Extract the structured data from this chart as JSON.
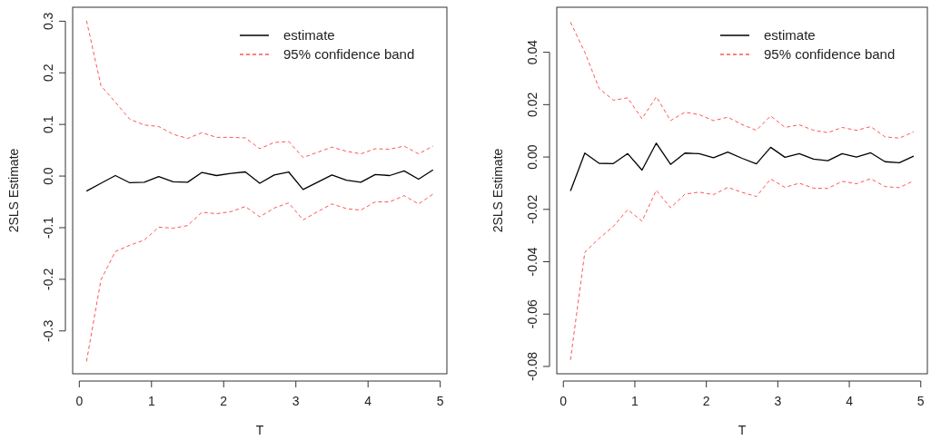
{
  "chart_data": [
    {
      "type": "line",
      "xlabel": "T",
      "ylabel": "2SLS Estimate",
      "x": [
        0.1,
        0.3,
        0.5,
        0.7,
        0.9,
        1.1,
        1.3,
        1.5,
        1.7,
        1.9,
        2.1,
        2.3,
        2.5,
        2.7,
        2.9,
        3.1,
        3.3,
        3.5,
        3.7,
        3.9,
        4.1,
        4.3,
        4.5,
        4.7,
        4.9
      ],
      "xlim": [
        -0.092,
        5.092
      ],
      "xticks": [
        0,
        1,
        2,
        3,
        4,
        5
      ],
      "ylim": [
        -0.383,
        0.327
      ],
      "yticks": [
        -0.3,
        -0.2,
        -0.1,
        {
          "value": 0,
          "label": "0.0"
        },
        0.1,
        0.2,
        0.3
      ],
      "grid": false,
      "legend": "top right",
      "marker": "none",
      "series": [
        {
          "name": "estimate",
          "color": "#000000",
          "line_style": "solid",
          "values": [
            -0.029,
            -0.014,
            0.001,
            -0.013,
            -0.012,
            -0.001,
            -0.011,
            -0.012,
            0.007,
            0.001,
            0.005,
            0.008,
            -0.014,
            0.002,
            0.008,
            -0.026,
            -0.012,
            0.002,
            -0.008,
            -0.012,
            0.003,
            0.001,
            0.01,
            -0.006,
            0.012
          ]
        },
        {
          "name": "95% confidence band",
          "color": "#ff5555",
          "line_style": "dashed",
          "values": [
            0.301,
            0.175,
            0.143,
            0.11,
            0.099,
            0.096,
            0.081,
            0.073,
            0.084,
            0.075,
            0.075,
            0.074,
            0.053,
            0.065,
            0.067,
            0.036,
            0.046,
            0.056,
            0.048,
            0.043,
            0.053,
            0.052,
            0.058,
            0.043,
            0.058
          ]
        },
        {
          "color": "#ff5555",
          "line_style": "dashed",
          "values": [
            -0.359,
            -0.201,
            -0.146,
            -0.134,
            -0.124,
            -0.099,
            -0.101,
            -0.096,
            -0.07,
            -0.073,
            -0.069,
            -0.059,
            -0.079,
            -0.062,
            -0.052,
            -0.085,
            -0.069,
            -0.054,
            -0.063,
            -0.066,
            -0.05,
            -0.05,
            -0.038,
            -0.054,
            -0.035
          ]
        }
      ]
    },
    {
      "type": "line",
      "xlabel": "T",
      "ylabel": "2SLS Estimate",
      "x": [
        0.1,
        0.3,
        0.5,
        0.7,
        0.9,
        1.1,
        1.3,
        1.5,
        1.7,
        1.9,
        2.1,
        2.3,
        2.5,
        2.7,
        2.9,
        3.1,
        3.3,
        3.5,
        3.7,
        3.9,
        4.1,
        4.3,
        4.5,
        4.7,
        4.9
      ],
      "xlim": [
        -0.092,
        5.092
      ],
      "xticks": [
        0,
        1,
        2,
        3,
        4,
        5
      ],
      "ylim": [
        -0.0828,
        0.0572
      ],
      "yticks": [
        -0.08,
        -0.06,
        -0.04,
        -0.02,
        {
          "value": 0,
          "label": "0.00"
        },
        0.02,
        0.04
      ],
      "grid": false,
      "legend": "top right",
      "marker": "none",
      "series": [
        {
          "name": "estimate",
          "color": "#000000",
          "line_style": "solid",
          "values": [
            -0.013,
            0.0015,
            -0.0024,
            -0.0025,
            0.0013,
            -0.005,
            0.0053,
            -0.0028,
            0.0015,
            0.0013,
            -0.0003,
            0.0019,
            -0.0005,
            -0.0026,
            0.0037,
            -0.0001,
            0.0013,
            -0.0008,
            -0.0014,
            0.0013,
            0.0,
            0.0016,
            -0.0018,
            -0.0022,
            0.0003
          ]
        },
        {
          "name": "95% confidence band",
          "color": "#ff5555",
          "line_style": "dashed",
          "values": [
            0.0515,
            0.04,
            0.0262,
            0.0217,
            0.0226,
            0.0146,
            0.023,
            0.0139,
            0.0171,
            0.0162,
            0.0139,
            0.0152,
            0.0124,
            0.0102,
            0.0157,
            0.0113,
            0.0123,
            0.0102,
            0.0093,
            0.0113,
            0.0102,
            0.0116,
            0.0077,
            0.0072,
            0.0096
          ]
        },
        {
          "color": "#ff5555",
          "line_style": "dashed",
          "values": [
            -0.0775,
            -0.0364,
            -0.0311,
            -0.0265,
            -0.0201,
            -0.0245,
            -0.0127,
            -0.0194,
            -0.0142,
            -0.0134,
            -0.0144,
            -0.0116,
            -0.0135,
            -0.0151,
            -0.0084,
            -0.0116,
            -0.01,
            -0.0119,
            -0.012,
            -0.0093,
            -0.0102,
            -0.0083,
            -0.0113,
            -0.0117,
            -0.0091
          ]
        }
      ]
    }
  ]
}
